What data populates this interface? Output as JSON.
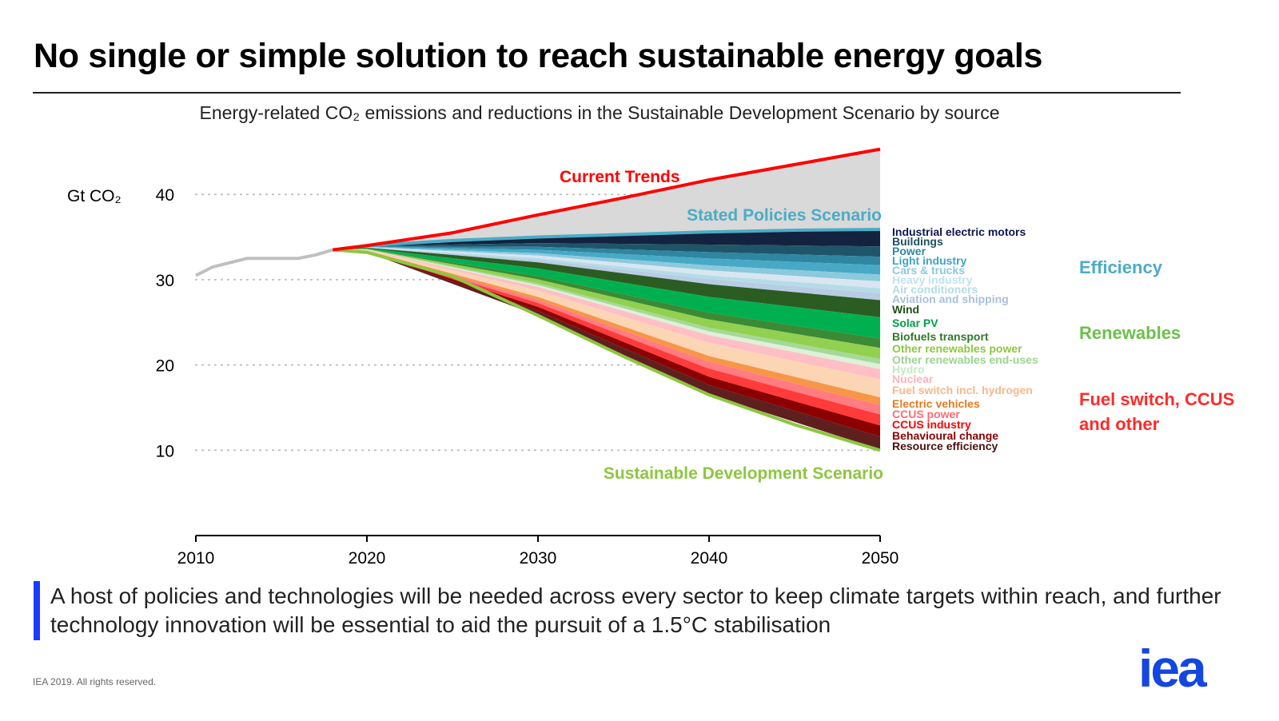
{
  "title": "No single or simple solution to reach sustainable energy goals",
  "subtitle": "Energy-related CO₂ emissions and reductions in the Sustainable Development Scenario by source",
  "message": "A host of policies and technologies will be needed across every sector to keep climate targets within reach, and further technology innovation will be essential to aid the pursuit of a 1.5°C stabilisation",
  "footer": "IEA 2019. All rights reserved.",
  "logo": "iea",
  "chart_data": {
    "type": "area",
    "ylabel": "Gt CO₂",
    "xlim": [
      2010,
      2050
    ],
    "ylim": [
      0,
      45
    ],
    "xticks": [
      "2010",
      "2020",
      "2030",
      "2040",
      "2050"
    ],
    "yticks": [
      "10",
      "20",
      "30",
      "40"
    ],
    "grid": "dotted horizontal",
    "historical": {
      "x": [
        2010,
        2011,
        2012,
        2013,
        2014,
        2015,
        2016,
        2017,
        2018
      ],
      "y": [
        30.5,
        31.5,
        32.0,
        32.5,
        32.5,
        32.5,
        32.5,
        32.9,
        33.5
      ],
      "color": "#c0c0c0"
    },
    "current_trends": {
      "name": "Current Trends",
      "x": [
        2018,
        2020,
        2025,
        2030,
        2035,
        2040,
        2045,
        2050
      ],
      "y": [
        33.5,
        34.0,
        35.5,
        37.6,
        39.6,
        41.7,
        43.5,
        45.3
      ],
      "color": "#ff0000"
    },
    "stated_policies": {
      "name": "Stated Policies Scenario",
      "x": [
        2018,
        2020,
        2025,
        2030,
        2035,
        2040,
        2045,
        2050
      ],
      "y": [
        33.5,
        34.0,
        34.6,
        35.0,
        35.3,
        35.6,
        35.8,
        35.9
      ],
      "color": "#4bacc6"
    },
    "sds": {
      "name": "Sustainable Development Scenario",
      "x": [
        2018,
        2020,
        2025,
        2030,
        2035,
        2040,
        2045,
        2050
      ],
      "y": [
        33.5,
        33.2,
        30.4,
        25.8,
        21.0,
        16.5,
        13.0,
        10.0
      ],
      "color": "#8dc63f"
    },
    "reduction_years": [
      2018,
      2020,
      2030,
      2040,
      2050
    ],
    "reductions": [
      {
        "name": "Industrial electric motors",
        "group": "Efficiency",
        "color": "#12223f",
        "label_color": "#0d1650",
        "values": [
          0,
          0.06,
          0.71,
          1.48,
          2.0
        ]
      },
      {
        "name": "Buildings",
        "group": "Efficiency",
        "color": "#1f5568",
        "label_color": "#1f4e60",
        "values": [
          0,
          0.04,
          0.43,
          0.89,
          1.2
        ]
      },
      {
        "name": "Power",
        "group": "Efficiency",
        "color": "#2e86a0",
        "label_color": "#2e86a0",
        "values": [
          0,
          0.03,
          0.36,
          0.74,
          1.0
        ]
      },
      {
        "name": "Light industry",
        "group": "Efficiency",
        "color": "#47a9c6",
        "label_color": "#3fa3c4",
        "values": [
          0,
          0.03,
          0.39,
          0.81,
          1.1
        ]
      },
      {
        "name": "Cars & trucks",
        "group": "Efficiency",
        "color": "#8cc9dc",
        "label_color": "#8cc9dc",
        "values": [
          0,
          0.02,
          0.29,
          0.59,
          0.8
        ]
      },
      {
        "name": "Heavy industry",
        "group": "Efficiency",
        "color": "#dae5f2",
        "label_color": "#bfe3f0",
        "values": [
          0,
          0.02,
          0.29,
          0.59,
          0.8
        ]
      },
      {
        "name": "Air conditioners",
        "group": "Efficiency",
        "color": "#b4dce6",
        "label_color": "#b4dce6",
        "values": [
          0,
          0.02,
          0.21,
          0.44,
          0.6
        ]
      },
      {
        "name": "Aviation and shipping",
        "group": "Efficiency",
        "color": "#b8cce4",
        "label_color": "#a9c0de",
        "values": [
          0,
          0.02,
          0.29,
          0.59,
          0.8
        ]
      },
      {
        "name": "Wind",
        "group": "Renewables",
        "color": "#2b5c22",
        "label_color": "#1e5216",
        "values": [
          0,
          0.06,
          0.71,
          1.48,
          2.0
        ]
      },
      {
        "name": "Solar PV",
        "group": "Renewables",
        "color": "#00b050",
        "label_color": "#00a046",
        "values": [
          0,
          0.08,
          0.89,
          1.85,
          2.5
        ]
      },
      {
        "name": "Biofuels transport",
        "group": "Renewables",
        "color": "#3c8a35",
        "label_color": "#2f7a28",
        "values": [
          0,
          0.03,
          0.39,
          0.81,
          1.1
        ]
      },
      {
        "name": "Other renewables power",
        "group": "Renewables",
        "color": "#92d050",
        "label_color": "#8cc83f",
        "values": [
          0,
          0.04,
          0.46,
          0.96,
          1.3
        ]
      },
      {
        "name": "Other renewables end-uses",
        "group": "Renewables",
        "color": "#a6d89a",
        "label_color": "#9dd490",
        "values": [
          0,
          0.02,
          0.21,
          0.44,
          0.6
        ]
      },
      {
        "name": "Hydro",
        "group": "Renewables",
        "color": "#ddf0d8",
        "label_color": "#c5e8c0",
        "values": [
          0,
          0.02,
          0.21,
          0.44,
          0.6
        ]
      },
      {
        "name": "Nuclear",
        "group": "Fuel switch, CCUS and other",
        "color": "#ffbfc5",
        "label_color": "#ffb3bb",
        "values": [
          0,
          0.04,
          0.43,
          0.89,
          1.2
        ]
      },
      {
        "name": "Fuel switch incl. hydrogen",
        "group": "Fuel switch, CCUS and other",
        "color": "#fcd5b5",
        "label_color": "#f8b88b",
        "values": [
          0,
          0.06,
          0.75,
          1.55,
          2.1
        ]
      },
      {
        "name": "Electric vehicles",
        "group": "Fuel switch, CCUS and other",
        "color": "#f79646",
        "label_color": "#e8791e",
        "values": [
          0,
          0.03,
          0.32,
          0.67,
          0.9
        ]
      },
      {
        "name": "CCUS power",
        "group": "Fuel switch, CCUS and other",
        "color": "#ff7c80",
        "label_color": "#ff6b73",
        "values": [
          0,
          0.03,
          0.39,
          0.81,
          1.1
        ]
      },
      {
        "name": "CCUS industry",
        "group": "Fuel switch, CCUS and other",
        "color": "#ff3b3b",
        "label_color": "#ff0000",
        "values": [
          0,
          0.04,
          0.46,
          0.96,
          1.3
        ]
      },
      {
        "name": "Behavioural change",
        "group": "Fuel switch, CCUS and other",
        "color": "#8b0000",
        "label_color": "#8b0000",
        "values": [
          0,
          0.04,
          0.46,
          0.96,
          1.3
        ]
      },
      {
        "name": "Resource efficiency",
        "group": "Fuel switch, CCUS and other",
        "color": "#5e1f1f",
        "label_color": "#4a1010",
        "values": [
          0,
          0.05,
          0.54,
          1.11,
          1.5
        ]
      }
    ],
    "groups": [
      {
        "label": "Efficiency",
        "color": "#4bacc6"
      },
      {
        "label": "Renewables",
        "color": "#6cc04a"
      },
      {
        "label": "Fuel switch, CCUS and other",
        "color": "#ff2a2a"
      }
    ],
    "gap_fill_color": "#d9d9d9"
  }
}
